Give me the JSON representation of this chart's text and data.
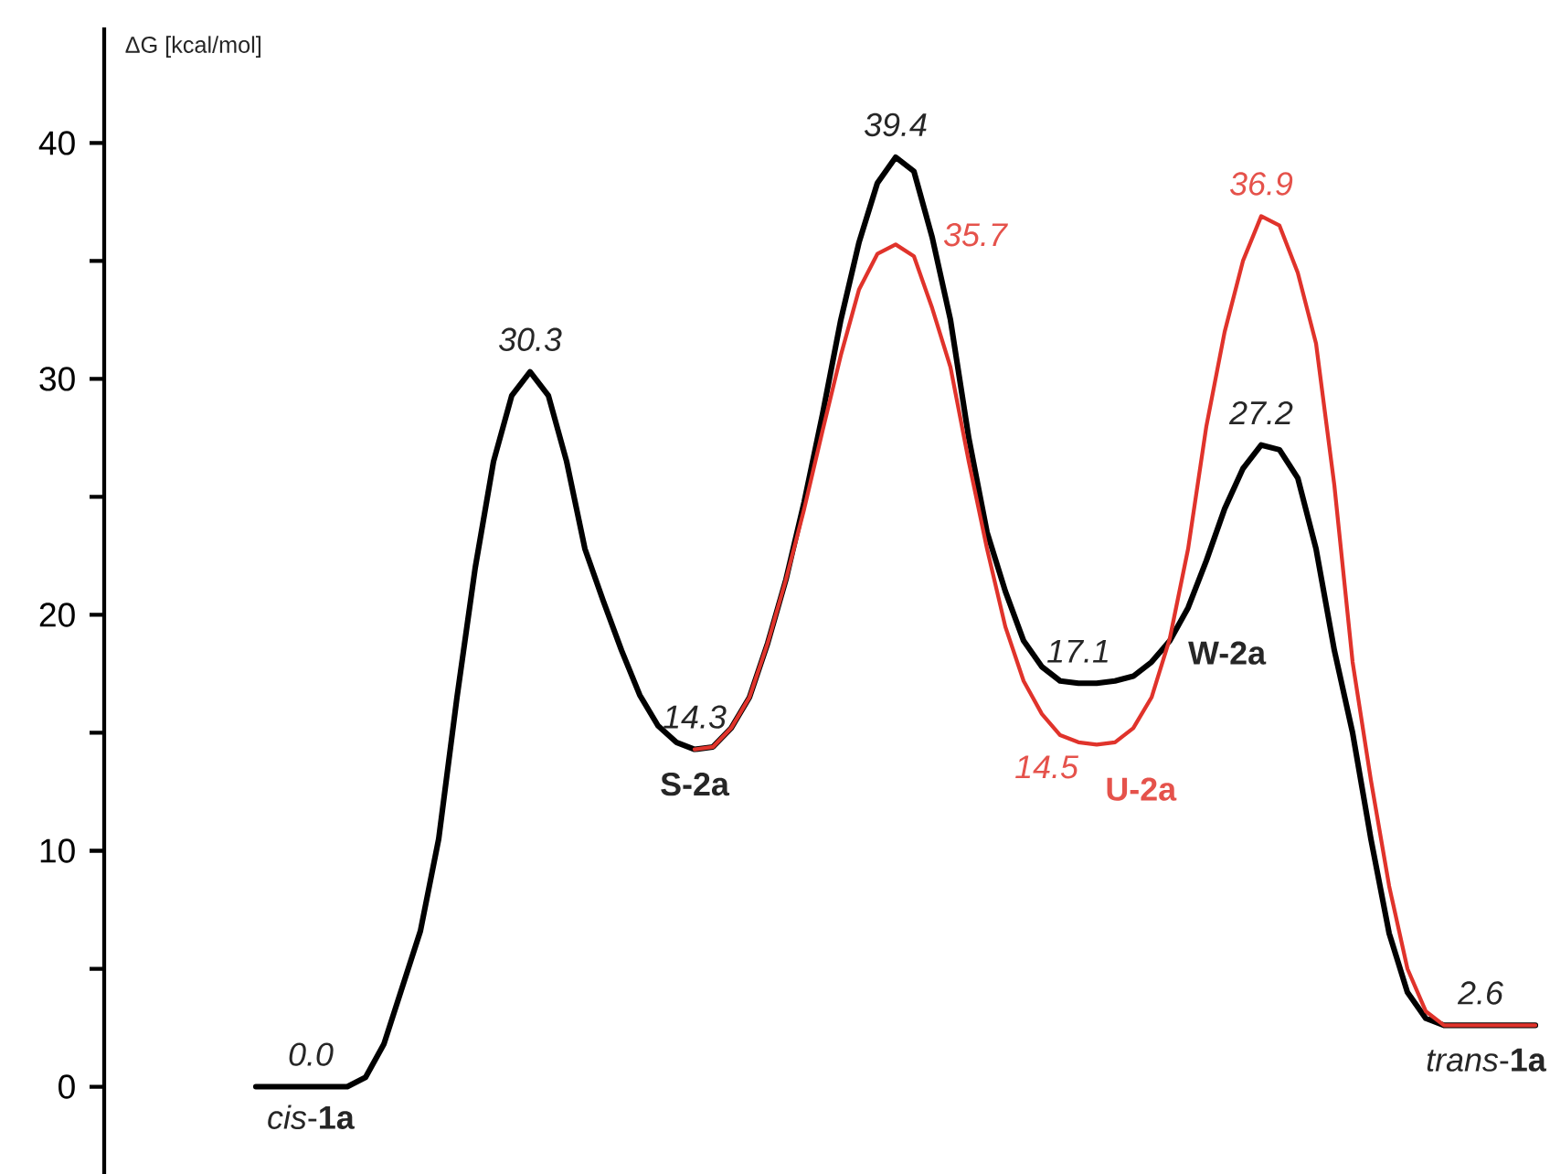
{
  "chart_data": {
    "type": "line",
    "ylabel": "ΔG [kcal/mol]",
    "categories": [
      null,
      null,
      null,
      null,
      null,
      null,
      null,
      null,
      null,
      null,
      null,
      null,
      null,
      null,
      null,
      null,
      null,
      null,
      null,
      null,
      null,
      null,
      null,
      null,
      null,
      null,
      null,
      null,
      null,
      null,
      null,
      null,
      null,
      null,
      null,
      null,
      null,
      null,
      null,
      null,
      null,
      null,
      null,
      null,
      null,
      null,
      null,
      null,
      null,
      null,
      null,
      null,
      null,
      null,
      null,
      null,
      null,
      null,
      null,
      null,
      null,
      null,
      null,
      null,
      null,
      null,
      null,
      null,
      null,
      null,
      null
    ],
    "ylim": [
      -3.7,
      44.9
    ],
    "yticks": [
      0,
      10,
      20,
      30,
      40
    ],
    "marker": "none",
    "line_style": "solid",
    "grid": false,
    "tick_labels": "y",
    "series": [
      {
        "color": "#000000",
        "values": [
          0,
          0,
          0,
          0,
          0,
          0,
          0.4,
          1.8,
          4.2,
          6.6,
          10.5,
          16.5,
          22,
          26.5,
          29.3,
          30.3,
          29.3,
          26.5,
          22.8,
          20.6,
          18.5,
          16.6,
          15.3,
          14.6,
          14.3,
          14.4,
          15.2,
          16.5,
          18.8,
          21.5,
          24.8,
          28.5,
          32.5,
          35.8,
          38.3,
          39.4,
          38.8,
          36,
          32.5,
          27.5,
          23.5,
          21,
          18.9,
          17.8,
          17.2,
          17.1,
          17.1,
          17.2,
          17.4,
          18,
          18.9,
          20.3,
          22.3,
          24.5,
          26.2,
          27.2,
          27,
          25.8,
          22.8,
          18.5,
          15,
          10.5,
          6.5,
          4,
          2.9,
          2.6,
          2.6,
          2.6,
          2.6,
          2.6,
          2.6
        ],
        "value_labels": [
          null,
          null,
          null,
          "0.0",
          null,
          null,
          null,
          null,
          null,
          null,
          null,
          null,
          null,
          null,
          null,
          "30.3",
          null,
          null,
          null,
          null,
          null,
          null,
          null,
          null,
          "14.3",
          null,
          null,
          null,
          null,
          null,
          null,
          null,
          null,
          null,
          null,
          "39.4",
          null,
          null,
          null,
          null,
          null,
          null,
          null,
          null,
          null,
          "17.1",
          null,
          null,
          null,
          null,
          null,
          null,
          null,
          null,
          null,
          "27.2",
          null,
          null,
          null,
          null,
          null,
          null,
          null,
          null,
          null,
          null,
          null,
          "2.6",
          null,
          null,
          null
        ]
      },
      {
        "color": "#e0332b",
        "values": [
          null,
          null,
          null,
          null,
          null,
          null,
          null,
          null,
          null,
          null,
          null,
          null,
          null,
          null,
          null,
          null,
          null,
          null,
          null,
          null,
          null,
          null,
          null,
          null,
          14.3,
          14.4,
          15.2,
          16.5,
          18.8,
          21.5,
          24.5,
          27.8,
          31,
          33.8,
          35.3,
          35.7,
          35.2,
          33,
          30.5,
          26.5,
          22.8,
          19.5,
          17.2,
          15.8,
          14.9,
          14.6,
          14.5,
          14.6,
          15.2,
          16.5,
          19,
          22.8,
          28,
          32,
          35,
          36.9,
          36.5,
          34.5,
          31.5,
          25.5,
          18,
          13,
          8.5,
          5,
          3.2,
          2.6,
          2.6,
          2.6,
          2.6,
          2.6,
          2.6
        ],
        "value_labels": [
          null,
          null,
          null,
          null,
          null,
          null,
          null,
          null,
          null,
          null,
          null,
          null,
          null,
          null,
          null,
          null,
          null,
          null,
          null,
          null,
          null,
          null,
          null,
          null,
          null,
          null,
          null,
          null,
          null,
          null,
          null,
          null,
          null,
          null,
          null,
          "35.7",
          null,
          null,
          null,
          null,
          null,
          null,
          null,
          null,
          null,
          null,
          "14.5",
          null,
          null,
          null,
          null,
          null,
          null,
          null,
          null,
          "36.9",
          null,
          null,
          null,
          null,
          null,
          null,
          null,
          null,
          null,
          null,
          null,
          null,
          null,
          null,
          null
        ]
      }
    ],
    "annotations": [
      "*cis*-**1a**",
      "S-2a",
      "U-2a",
      "W-2a",
      "*trans*-**1a**"
    ]
  }
}
